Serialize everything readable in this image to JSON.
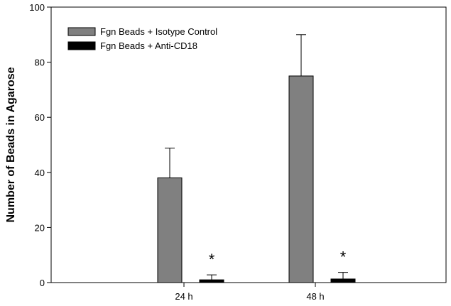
{
  "chart_data": {
    "type": "bar",
    "title": "",
    "xlabel": "",
    "ylabel": "Number of Beads in Agarose",
    "ylim": [
      0,
      100
    ],
    "yticks": [
      0,
      20,
      40,
      60,
      80,
      100
    ],
    "categories": [
      "24 h",
      "48 h"
    ],
    "series": [
      {
        "name": "Fgn Beads + Isotype Control",
        "color": "#808080",
        "values": [
          38,
          75
        ],
        "errors": [
          10.8,
          15
        ]
      },
      {
        "name": "Fgn Beads + Anti-CD18",
        "color": "#000000",
        "values": [
          1,
          1.3
        ],
        "errors": [
          1.8,
          2.4
        ]
      }
    ],
    "annotations": [
      "*",
      "*"
    ],
    "grid": false,
    "legend_position": "top-left"
  }
}
